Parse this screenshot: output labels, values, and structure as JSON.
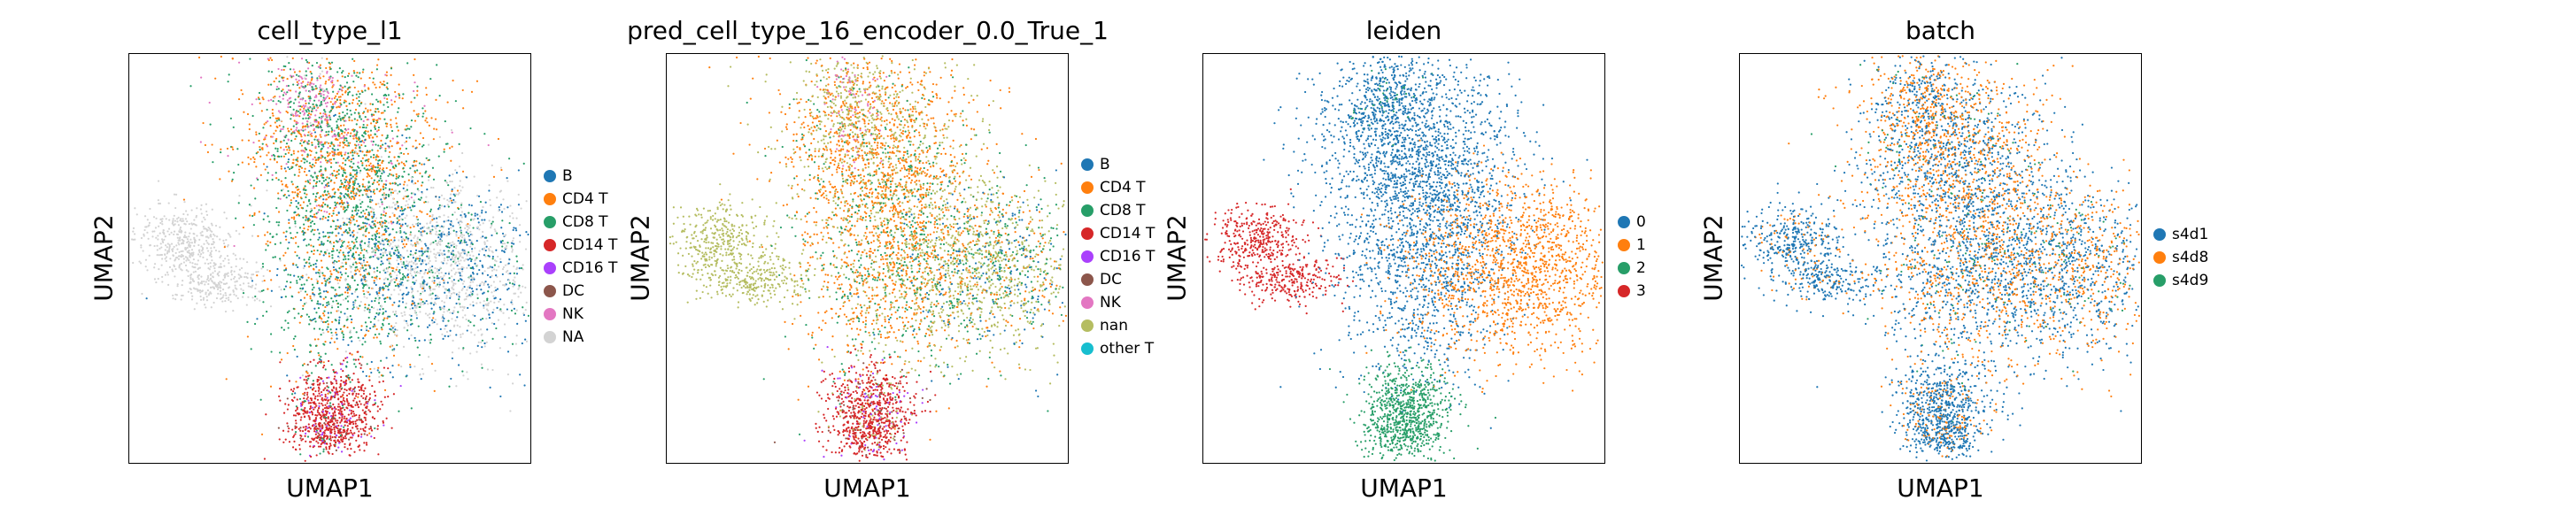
{
  "chart_data": [
    {
      "type": "scatter",
      "title": "cell_type_l1",
      "xlabel": "UMAP1",
      "ylabel": "UMAP2",
      "grid": false,
      "legend_position": "right",
      "legend": [
        {
          "label": "B",
          "color": "#1f77b4"
        },
        {
          "label": "CD4 T",
          "color": "#ff7f0e"
        },
        {
          "label": "CD8 T",
          "color": "#279e68"
        },
        {
          "label": "CD14 T",
          "color": "#d62728"
        },
        {
          "label": "CD16 T",
          "color": "#aa40fc"
        },
        {
          "label": "DC",
          "color": "#8c564b"
        },
        {
          "label": "NK",
          "color": "#e377c2"
        },
        {
          "label": "NA",
          "color": "#d3d3d3"
        }
      ]
    },
    {
      "type": "scatter",
      "title": "pred_cell_type_16_encoder_0.0_True_1",
      "xlabel": "UMAP1",
      "ylabel": "UMAP2",
      "grid": false,
      "legend_position": "right",
      "legend": [
        {
          "label": "B",
          "color": "#1f77b4"
        },
        {
          "label": "CD4 T",
          "color": "#ff7f0e"
        },
        {
          "label": "CD8 T",
          "color": "#279e68"
        },
        {
          "label": "CD14 T",
          "color": "#d62728"
        },
        {
          "label": "CD16 T",
          "color": "#aa40fc"
        },
        {
          "label": "DC",
          "color": "#8c564b"
        },
        {
          "label": "NK",
          "color": "#e377c2"
        },
        {
          "label": "nan",
          "color": "#b5bd61"
        },
        {
          "label": "other T",
          "color": "#17becf"
        }
      ]
    },
    {
      "type": "scatter",
      "title": "leiden",
      "xlabel": "UMAP1",
      "ylabel": "UMAP2",
      "grid": false,
      "legend_position": "right",
      "legend": [
        {
          "label": "0",
          "color": "#1f77b4"
        },
        {
          "label": "1",
          "color": "#ff7f0e"
        },
        {
          "label": "2",
          "color": "#279e68"
        },
        {
          "label": "3",
          "color": "#d62728"
        }
      ]
    },
    {
      "type": "scatter",
      "title": "batch",
      "xlabel": "UMAP1",
      "ylabel": "UMAP2",
      "grid": false,
      "legend_position": "right",
      "legend": [
        {
          "label": "s4d1",
          "color": "#1f77b4"
        },
        {
          "label": "s4d8",
          "color": "#ff7f0e"
        },
        {
          "label": "s4d9",
          "color": "#279e68"
        }
      ]
    }
  ]
}
